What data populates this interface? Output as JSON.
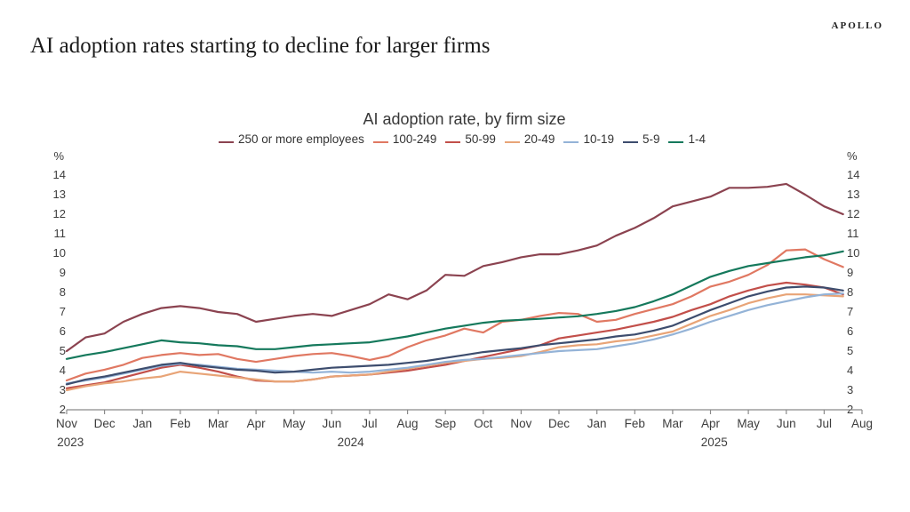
{
  "header": {
    "brand": "APOLLO",
    "title": "AI adoption rates starting to decline for larger firms"
  },
  "chart_data": {
    "type": "line",
    "title": "AI adoption rate, by firm size",
    "legend_position": "top",
    "grid": false,
    "y_axis": {
      "unit": "%",
      "min": 2,
      "max": 14,
      "ticks": [
        2,
        3,
        4,
        5,
        6,
        7,
        8,
        9,
        10,
        11,
        12,
        13,
        14
      ]
    },
    "x_axis": {
      "month_labels": [
        "Nov",
        "Dec",
        "Jan",
        "Feb",
        "Mar",
        "Apr",
        "May",
        "Jun",
        "Jul",
        "Aug",
        "Sep",
        "Oct",
        "Nov",
        "Dec",
        "Jan",
        "Feb",
        "Mar",
        "Apr",
        "May",
        "Jun",
        "Jul",
        "Aug"
      ],
      "year_labels": [
        {
          "text": "2023",
          "month": 0.1
        },
        {
          "text": "2024",
          "month": 7.5
        },
        {
          "text": "2025",
          "month": 17.1
        }
      ]
    },
    "x_resolution_months": 0.5,
    "series": [
      {
        "id": "250-plus",
        "name": "250 or more employees",
        "color": "#8b4350",
        "values": [
          5.0,
          5.7,
          5.9,
          6.5,
          6.9,
          7.2,
          7.3,
          7.2,
          7.0,
          6.9,
          6.5,
          6.65,
          6.8,
          6.9,
          6.8,
          7.1,
          7.4,
          7.9,
          7.65,
          8.1,
          8.9,
          8.85,
          9.35,
          9.55,
          9.8,
          9.95,
          9.95,
          10.15,
          10.4,
          10.9,
          11.3,
          11.8,
          12.4,
          12.65,
          12.9,
          13.35,
          13.35,
          13.4,
          13.55,
          13.0,
          12.4,
          12.0
        ]
      },
      {
        "id": "100-249",
        "name": "100-249",
        "color": "#e07862",
        "values": [
          3.5,
          3.85,
          4.05,
          4.3,
          4.65,
          4.8,
          4.9,
          4.8,
          4.85,
          4.6,
          4.45,
          4.6,
          4.75,
          4.85,
          4.9,
          4.75,
          4.55,
          4.75,
          5.2,
          5.55,
          5.8,
          6.15,
          5.95,
          6.5,
          6.6,
          6.8,
          6.95,
          6.9,
          6.5,
          6.6,
          6.9,
          7.15,
          7.4,
          7.8,
          8.3,
          8.55,
          8.9,
          9.4,
          10.15,
          10.2,
          9.7,
          9.3
        ]
      },
      {
        "id": "50-99",
        "name": "50-99",
        "color": "#c24f4a",
        "values": [
          3.1,
          3.25,
          3.4,
          3.65,
          3.9,
          4.15,
          4.3,
          4.15,
          3.95,
          3.7,
          3.5,
          3.45,
          3.45,
          3.55,
          3.7,
          3.75,
          3.8,
          3.9,
          4.0,
          4.15,
          4.3,
          4.5,
          4.7,
          4.9,
          5.1,
          5.3,
          5.65,
          5.8,
          5.95,
          6.1,
          6.3,
          6.5,
          6.75,
          7.1,
          7.4,
          7.8,
          8.1,
          8.35,
          8.5,
          8.4,
          8.25,
          7.9
        ]
      },
      {
        "id": "20-49",
        "name": "20-49",
        "color": "#e8a477",
        "values": [
          3.0,
          3.2,
          3.35,
          3.45,
          3.6,
          3.7,
          3.95,
          3.85,
          3.75,
          3.65,
          3.55,
          3.45,
          3.45,
          3.55,
          3.7,
          3.75,
          3.8,
          3.95,
          4.1,
          4.25,
          4.4,
          4.5,
          4.6,
          4.65,
          4.75,
          4.95,
          5.2,
          5.3,
          5.35,
          5.5,
          5.6,
          5.8,
          6.0,
          6.4,
          6.8,
          7.1,
          7.45,
          7.7,
          7.9,
          7.9,
          7.85,
          7.8
        ]
      },
      {
        "id": "10-19",
        "name": "10-19",
        "color": "#94b3d7",
        "values": [
          3.35,
          3.5,
          3.65,
          3.85,
          4.05,
          4.25,
          4.35,
          4.3,
          4.2,
          4.1,
          4.05,
          4.0,
          3.95,
          3.9,
          3.95,
          3.9,
          3.95,
          4.05,
          4.15,
          4.3,
          4.45,
          4.55,
          4.6,
          4.7,
          4.8,
          4.9,
          5.0,
          5.05,
          5.1,
          5.25,
          5.4,
          5.6,
          5.85,
          6.15,
          6.5,
          6.8,
          7.1,
          7.35,
          7.55,
          7.75,
          7.9,
          7.95
        ]
      },
      {
        "id": "5-9",
        "name": "5-9",
        "color": "#3d4d6e",
        "values": [
          3.3,
          3.55,
          3.7,
          3.9,
          4.1,
          4.3,
          4.4,
          4.25,
          4.15,
          4.05,
          4.0,
          3.9,
          3.95,
          4.05,
          4.15,
          4.2,
          4.25,
          4.3,
          4.4,
          4.5,
          4.65,
          4.8,
          4.95,
          5.05,
          5.15,
          5.3,
          5.4,
          5.5,
          5.6,
          5.75,
          5.85,
          6.05,
          6.3,
          6.7,
          7.1,
          7.45,
          7.8,
          8.05,
          8.25,
          8.3,
          8.25,
          8.1
        ]
      },
      {
        "id": "1-4",
        "name": "1-4",
        "color": "#15795c",
        "values": [
          4.6,
          4.8,
          4.95,
          5.15,
          5.35,
          5.55,
          5.45,
          5.4,
          5.3,
          5.25,
          5.1,
          5.1,
          5.2,
          5.3,
          5.35,
          5.4,
          5.45,
          5.6,
          5.75,
          5.95,
          6.15,
          6.3,
          6.45,
          6.55,
          6.6,
          6.65,
          6.72,
          6.78,
          6.9,
          7.05,
          7.25,
          7.55,
          7.9,
          8.35,
          8.8,
          9.1,
          9.35,
          9.5,
          9.65,
          9.8,
          9.9,
          10.1
        ]
      }
    ]
  }
}
